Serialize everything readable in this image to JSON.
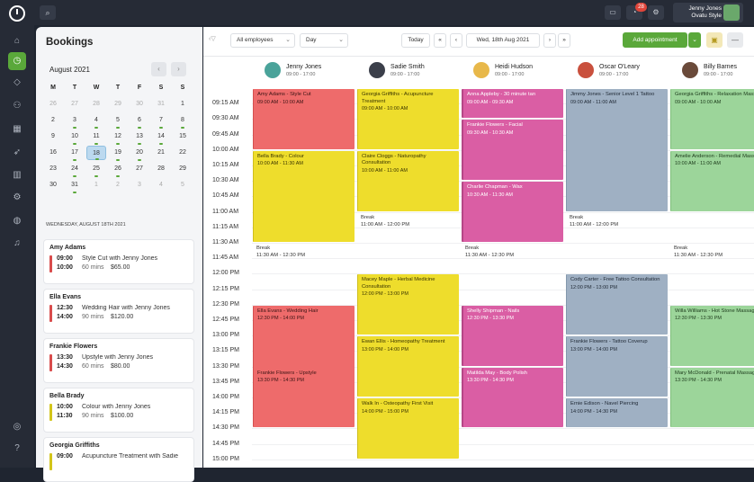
{
  "topbar": {
    "user_name": "Jenny Jones",
    "user_org": "Ovatu Style",
    "notifications": "28"
  },
  "nav": [
    "home-icon",
    "clock-icon",
    "tag-icon",
    "users-icon",
    "calendar-icon",
    "rocket-icon",
    "chart-icon",
    "gears-icon",
    "globe-icon",
    "bell-icon",
    "help-icon",
    "question-icon"
  ],
  "panel": {
    "title": "Bookings",
    "month": "August 2021",
    "weekdays": [
      "M",
      "T",
      "W",
      "T",
      "F",
      "S",
      "S"
    ],
    "weeks": [
      [
        "26",
        "27",
        "28",
        "29",
        "30",
        "31",
        "1"
      ],
      [
        "2",
        "3",
        "4",
        "5",
        "6",
        "7",
        "8"
      ],
      [
        "9",
        "10",
        "11",
        "12",
        "13",
        "14",
        "15"
      ],
      [
        "16",
        "17",
        "18",
        "19",
        "20",
        "21",
        "22"
      ],
      [
        "23",
        "24",
        "25",
        "26",
        "27",
        "28",
        "29"
      ],
      [
        "30",
        "31",
        "1",
        "2",
        "3",
        "4",
        "5"
      ]
    ],
    "day_heading": "WEDNESDAY, AUGUST 18TH 2021",
    "cards": [
      {
        "name": "Amy Adams",
        "start": "09:00",
        "end": "10:00",
        "service": "Style Cut with Jenny Jones",
        "duration": "60 mins",
        "price": "$65.00",
        "color": "#d94c4c"
      },
      {
        "name": "Ella Evans",
        "start": "12:30",
        "end": "14:00",
        "service": "Wedding Hair with Jenny Jones",
        "duration": "90 mins",
        "price": "$120.00",
        "color": "#d94c4c"
      },
      {
        "name": "Frankie Flowers",
        "start": "13:30",
        "end": "14:30",
        "service": "Upstyle with Jenny Jones",
        "duration": "60 mins",
        "price": "$80.00",
        "color": "#d94c4c"
      },
      {
        "name": "Bella Brady",
        "start": "10:00",
        "end": "11:30",
        "service": "Colour with Jenny Jones",
        "duration": "90 mins",
        "price": "$100.00",
        "color": "#d3c51a"
      },
      {
        "name": "Georgia Griffiths",
        "start": "09:00",
        "end": "",
        "service": "Acupuncture Treatment with Sadie",
        "duration": "",
        "price": "",
        "color": "#d3c51a"
      }
    ]
  },
  "toolbar": {
    "employees": "All employees",
    "view": "Day",
    "today": "Today",
    "date": "Wed, 18th Aug 2021",
    "add": "Add appointment"
  },
  "staff": [
    {
      "name": "Jenny Jones",
      "hours": "09:00 - 17:00",
      "color": "#4aa39a"
    },
    {
      "name": "Sadie Smith",
      "hours": "09:00 - 17:00",
      "color": "#3b3f4a"
    },
    {
      "name": "Heidi Hudson",
      "hours": "09:00 - 17:00",
      "color": "#e8b84a"
    },
    {
      "name": "Oscar O'Leary",
      "hours": "09:00 - 17:00",
      "color": "#c9503d"
    },
    {
      "name": "Billy Barnes",
      "hours": "09:00 - 17:00",
      "color": "#6a4a3a"
    }
  ],
  "times": [
    "09:15 AM",
    "09:30 AM",
    "09:45 AM",
    "10:00 AM",
    "10:15 AM",
    "10:30 AM",
    "10:45 AM",
    "11:00 AM",
    "11:15 AM",
    "11:30 AM",
    "11:45 AM",
    "12:00 PM",
    "12:15 PM",
    "12:30 PM",
    "12:45 PM",
    "13:00 PM",
    "13:15 PM",
    "13:30 PM",
    "13:45 PM",
    "14:00 PM",
    "14:15 PM",
    "14:30 PM",
    "14:45 PM",
    "15:00 PM"
  ],
  "appointments": [
    {
      "col": 0,
      "color": "red",
      "title": "Amy Adams - Style Cut",
      "time": "09:00 AM - 10:00 AM"
    },
    {
      "col": 0,
      "color": "yellow",
      "title": "Bella Brady - Colour",
      "time": "10:00 AM - 11:30 AM"
    },
    {
      "col": 0,
      "color": "red",
      "title": "Ella Evans - Wedding Hair",
      "time": "12:30 PM - 14:00 PM"
    },
    {
      "col": 0,
      "color": "red",
      "title": "Frankie Flowers - Upstyle",
      "time": "13:30 PM - 14:30 PM"
    },
    {
      "col": 1,
      "color": "yellow",
      "title": "Georgia Griffiths - Acupuncture Treatment",
      "time": "09:00 AM - 10:00 AM"
    },
    {
      "col": 1,
      "color": "yellow",
      "title": "Claire Cloggs - Naturopathy Consultation",
      "time": "10:00 AM - 11:00 AM"
    },
    {
      "col": 1,
      "color": "yellow",
      "title": "Macey Maple - Herbal Medicine Consultation",
      "time": "12:00 PM - 13:00 PM"
    },
    {
      "col": 1,
      "color": "yellow",
      "title": "Ewan Ellis - Homeopathy Treatment",
      "time": "13:00 PM - 14:00 PM"
    },
    {
      "col": 1,
      "color": "yellow",
      "title": "Walk In - Osteopathy First Visit",
      "time": "14:00 PM - 15:00 PM"
    },
    {
      "col": 2,
      "color": "pink",
      "title": "Anna Appleby - 30 minute tan",
      "time": "09:00 AM - 09:30 AM"
    },
    {
      "col": 2,
      "color": "pink",
      "title": "Frankie Flowers - Facial",
      "time": "09:30 AM - 10:30 AM"
    },
    {
      "col": 2,
      "color": "pink",
      "title": "Charlie Chapman - Wax",
      "time": "10:30 AM - 11:30 AM"
    },
    {
      "col": 2,
      "color": "pink",
      "title": "Shelly Shipman - Nails",
      "time": "12:30 PM - 13:30 PM"
    },
    {
      "col": 2,
      "color": "pink",
      "title": "Matilda May - Body Polish",
      "time": "13:30 PM - 14:30 PM"
    },
    {
      "col": 3,
      "color": "gray",
      "title": "Jimmy Jones - Senior Level 1 Tattoo",
      "time": "09:00 AM - 11:00 AM"
    },
    {
      "col": 3,
      "color": "gray",
      "title": "Cody Carter - Free Tattoo Consultation",
      "time": "12:00 PM - 13:00 PM"
    },
    {
      "col": 3,
      "color": "gray",
      "title": "Frankie Flowers - Tattoo Coverup",
      "time": "13:00 PM - 14:00 PM"
    },
    {
      "col": 3,
      "color": "gray",
      "title": "Ernie Edison - Navel Piercing",
      "time": "14:00 PM - 14:30 PM"
    },
    {
      "col": 4,
      "color": "green",
      "title": "Georgia Griffiths - Relaxation Massage",
      "time": "09:00 AM - 10:00 AM"
    },
    {
      "col": 4,
      "color": "green",
      "title": "Amelie Anderson - Remedial Massage",
      "time": "10:00 AM - 11:00 AM"
    },
    {
      "col": 4,
      "color": "green",
      "title": "Willa Williams - Hot Stone Massage",
      "time": "12:30 PM - 13:30 PM"
    },
    {
      "col": 4,
      "color": "green",
      "title": "Mary McDonald - Prenatal Massage",
      "time": "13:30 PM - 14:30 PM"
    }
  ],
  "breaks": [
    {
      "col": 1,
      "label": "Break",
      "time": "11:00 AM - 12:00 PM"
    },
    {
      "col": 3,
      "label": "Break",
      "time": "11:00 AM - 12:00 PM"
    },
    {
      "col": 0,
      "label": "Break",
      "time": "11:30 AM - 12:30 PM"
    },
    {
      "col": 2,
      "label": "Break",
      "time": "11:30 AM - 12:30 PM"
    },
    {
      "col": 4,
      "label": "Break",
      "time": "11:30 AM - 12:30 PM"
    }
  ]
}
